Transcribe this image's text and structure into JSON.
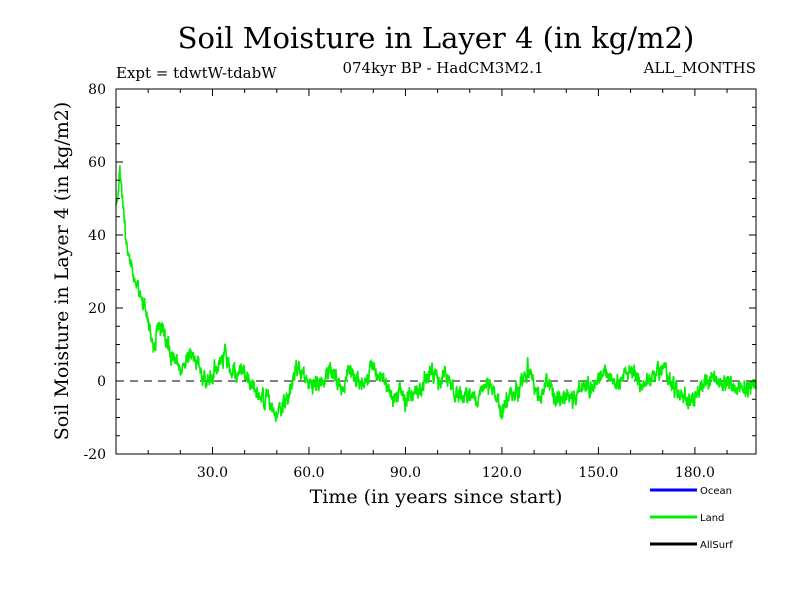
{
  "chart_data": {
    "type": "line",
    "title": "Soil Moisture in Layer 4 (in kg/m2)",
    "subtitle": "074kyr BP - HadCM3M2.1",
    "experiment": "Expt = tdwtW-tdabW",
    "period": "ALL_MONTHS",
    "xlabel": "Time (in years since start)",
    "ylabel": "Soil Moisture in Layer 4 (in kg/m2)",
    "xlim": [
      0,
      199
    ],
    "ylim": [
      -20,
      80
    ],
    "x_ticks": [
      {
        "value": 30,
        "label": "30.0"
      },
      {
        "value": 60,
        "label": "60.0"
      },
      {
        "value": 90,
        "label": "90.0"
      },
      {
        "value": 120,
        "label": "120.0"
      },
      {
        "value": 150,
        "label": "150.0"
      },
      {
        "value": 180,
        "label": "180.0"
      }
    ],
    "y_ticks": [
      {
        "value": -20,
        "label": "-20"
      },
      {
        "value": 0,
        "label": "0"
      },
      {
        "value": 20,
        "label": "20"
      },
      {
        "value": 40,
        "label": "40"
      },
      {
        "value": 60,
        "label": "60"
      },
      {
        "value": 80,
        "label": "80"
      }
    ],
    "reference_line": {
      "y": 0,
      "style": "dashed"
    },
    "legend_position": "bottom-right",
    "series": [
      {
        "name": "Ocean",
        "color": "#0000ff",
        "x": [],
        "values": []
      },
      {
        "name": "Land",
        "color": "#00ee00",
        "x": [
          0,
          1,
          2,
          3,
          4,
          5,
          6,
          7,
          8,
          9,
          10,
          11,
          12,
          13,
          14,
          15,
          16,
          17,
          18,
          19,
          20,
          21,
          22,
          23,
          24,
          25,
          26,
          27,
          28,
          29,
          30,
          32,
          34,
          36,
          38,
          40,
          42,
          44,
          46,
          48,
          50,
          52,
          54,
          56,
          58,
          60,
          62,
          64,
          66,
          68,
          70,
          72,
          74,
          76,
          78,
          80,
          82,
          84,
          86,
          88,
          90,
          92,
          94,
          96,
          98,
          100,
          102,
          104,
          106,
          108,
          110,
          112,
          114,
          116,
          118,
          120,
          122,
          124,
          126,
          128,
          130,
          132,
          134,
          136,
          138,
          140,
          142,
          144,
          146,
          148,
          150,
          152,
          154,
          156,
          158,
          160,
          162,
          164,
          166,
          168,
          170,
          172,
          174,
          176,
          178,
          180,
          182,
          184,
          186,
          188,
          190,
          192,
          194,
          196,
          198,
          199
        ],
        "values": [
          46,
          57,
          50,
          40,
          35,
          30,
          28,
          25,
          22,
          20,
          17,
          12,
          10,
          13,
          15,
          14,
          10,
          7,
          8,
          6,
          3,
          5,
          7,
          8,
          6,
          5,
          3,
          2,
          1,
          0,
          2,
          5,
          7,
          3,
          2,
          3,
          -1,
          -3,
          -5,
          -6,
          -10,
          -7,
          -3,
          3,
          2,
          0,
          -2,
          1,
          4,
          2,
          -3,
          3,
          2,
          0,
          1,
          4,
          2,
          -1,
          -5,
          -3,
          -6,
          -3,
          -2,
          0,
          3,
          -1,
          2,
          -2,
          -3,
          -4,
          -4,
          -5,
          -3,
          -1,
          -5,
          -8,
          -5,
          -3,
          -1,
          4,
          -2,
          -4,
          0,
          -3,
          -6,
          -3,
          -5,
          -2,
          -1,
          -2,
          2,
          3,
          0,
          -1,
          2,
          3,
          1,
          -2,
          0,
          2,
          4,
          1,
          -3,
          -4,
          -6,
          -4,
          -2,
          -1,
          0,
          -1,
          0,
          -2,
          -3,
          -1,
          -2,
          0
        ],
        "noise_amplitude": 3
      },
      {
        "name": "AllSurf",
        "color": "#000000",
        "x": [],
        "values": []
      }
    ]
  }
}
